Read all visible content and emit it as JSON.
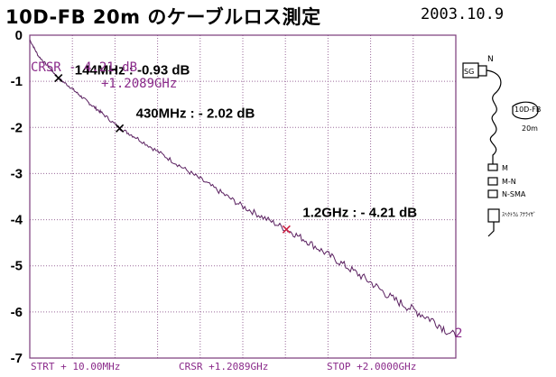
{
  "header": {
    "title": "10D-FB 20m のケーブルロス測定",
    "date": "2003.10.9"
  },
  "cursor_readout": {
    "line1": "CRSR   -   4.21 dB",
    "line2": "+1.2089GHz"
  },
  "footer": {
    "start": "STRT  + 10.00MHz",
    "cursor": "CRSR  +1.2089GHz",
    "stop": "STOP  +2.0000GHz"
  },
  "trace_end_marker": "2",
  "sketch": {
    "sg_label": "SG",
    "n_top_label": "N",
    "cable_label": "10D-FB",
    "length_label": "20m",
    "m_label": "M",
    "mn_label": "M-N",
    "nsma_label": "N-SMA",
    "detector_label": "ｽﾍｸﾄﾗﾑ ｱﾅﾗｲｻﾞ"
  },
  "colors": {
    "grid": "#9a6a9a",
    "frame": "#7a3a7a",
    "trace": "#5a2060",
    "readout": "#8a2a8a",
    "marker": "#cc2244"
  },
  "chart_data": {
    "type": "line",
    "x_unit": "MHz",
    "y_unit": "dB",
    "xlim": [
      10,
      2000
    ],
    "ylim": [
      -7,
      0
    ],
    "y_ticks": [
      "0",
      "-1",
      "-2",
      "-3",
      "-4",
      "-5",
      "-6",
      "-7"
    ],
    "grid": true,
    "series": [
      {
        "x": [
          10,
          50,
          100,
          144,
          200,
          250,
          300,
          350,
          430,
          500,
          600,
          700,
          800,
          900,
          1000,
          1100,
          1209,
          1300,
          1400,
          1500,
          1600,
          1700,
          1800,
          1900,
          2000
        ],
        "y": [
          -0.1,
          -0.45,
          -0.7,
          -0.93,
          -1.13,
          -1.33,
          -1.52,
          -1.7,
          -2.02,
          -2.2,
          -2.5,
          -2.8,
          -3.1,
          -3.4,
          -3.7,
          -3.95,
          -4.21,
          -4.45,
          -4.75,
          -5.05,
          -5.35,
          -5.7,
          -5.95,
          -6.2,
          -6.55
        ]
      }
    ],
    "annotations": [
      {
        "x": 144,
        "y": -0.93,
        "text": "144MHz : -0.93 dB"
      },
      {
        "x": 430,
        "y": -2.02,
        "text": "430MHz : - 2.02 dB"
      },
      {
        "x": 1209,
        "y": -4.21,
        "text": "1.2GHz : - 4.21 dB"
      }
    ]
  }
}
